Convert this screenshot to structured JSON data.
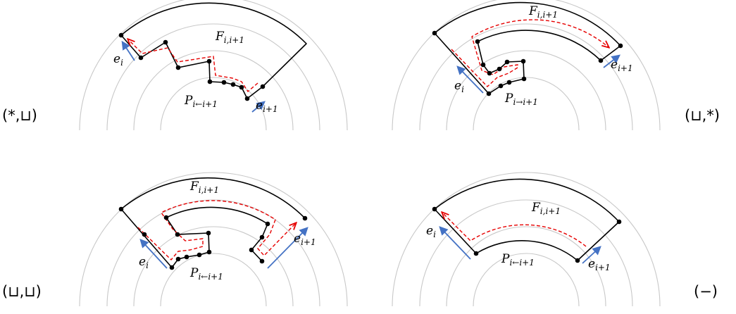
{
  "panels": [
    {
      "case": "(*,⊔)",
      "F": {
        "base": "F",
        "sub": "i,i+1"
      },
      "P": {
        "base": "P",
        "sub": "i←i+1"
      },
      "e_left": {
        "base": "e",
        "sub": "i"
      },
      "e_right": {
        "base": "e",
        "sub": "i+1"
      }
    },
    {
      "case": "(⊔,*)",
      "F": {
        "base": "F",
        "sub": "i,i+1"
      },
      "P": {
        "base": "P",
        "sub": "i→i+1"
      },
      "e_left": {
        "base": "e",
        "sub": "i"
      },
      "e_right": {
        "base": "e",
        "sub": "i+1"
      }
    },
    {
      "case": "(⊔,⊔)",
      "F": {
        "base": "F",
        "sub": "i,i+1"
      },
      "P": {
        "base": "P",
        "sub": "i←i+1"
      },
      "e_left": {
        "base": "e",
        "sub": "i"
      },
      "e_right": {
        "base": "e",
        "sub": "i+1"
      }
    },
    {
      "case": "(−)",
      "F": {
        "base": "F",
        "sub": "i,i+1"
      },
      "P": {
        "base": "P",
        "sub": "i←i+1"
      },
      "e_left": {
        "base": "e",
        "sub": "i"
      },
      "e_right": {
        "base": "e",
        "sub": "i+1"
      }
    }
  ],
  "colors": {
    "path": "#e60000",
    "edge_arrow": "#4472c4",
    "grid": "#c8c8c8",
    "outline": "#000000"
  }
}
